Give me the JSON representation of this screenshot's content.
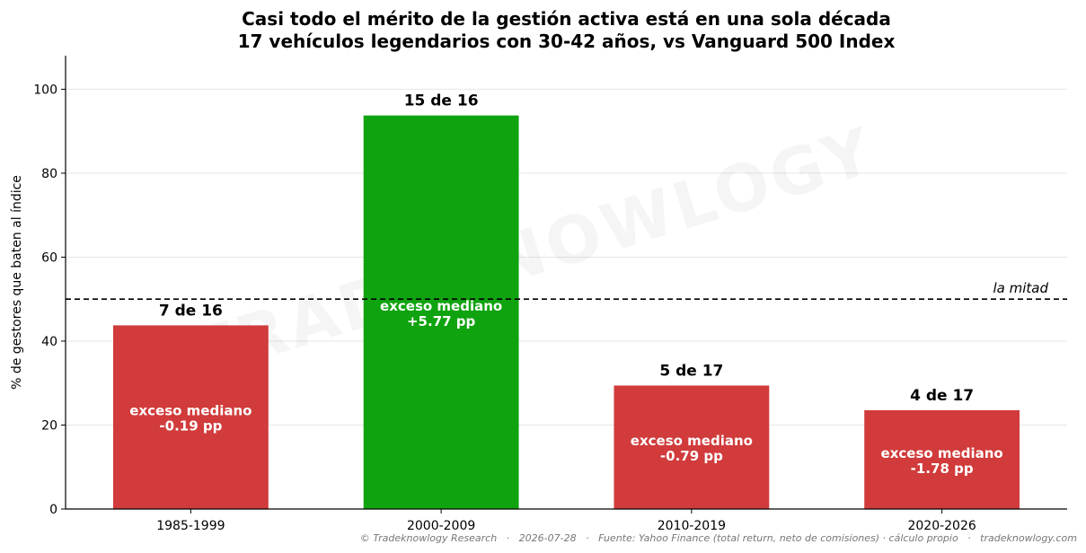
{
  "chart_data": {
    "type": "bar",
    "title": "Casi todo el mérito de la gestión activa está en una sola década",
    "subtitle": "17 vehículos legendarios con 30-42 años, vs Vanguard 500 Index",
    "xlabel": "",
    "ylabel": "% de gestores que baten al índice",
    "ylim": [
      0,
      108
    ],
    "yticks": [
      0,
      20,
      40,
      60,
      80,
      100
    ],
    "grid": "horizontal",
    "categories": [
      "1985-1999",
      "2000-2009",
      "2010-2019",
      "2020-2026"
    ],
    "values": [
      43.75,
      93.75,
      29.41,
      23.53
    ],
    "top_labels": [
      "7 de 16",
      "15 de 16",
      "5 de 17",
      "4 de 17"
    ],
    "inner_labels": [
      [
        "exceso mediano",
        "-0.19 pp"
      ],
      [
        "exceso mediano",
        "+5.77 pp"
      ],
      [
        "exceso mediano",
        "-0.79 pp"
      ],
      [
        "exceso mediano",
        "-1.78 pp"
      ]
    ],
    "bar_colors": [
      "#d13b3b",
      "#0fa30f",
      "#d13b3b",
      "#d13b3b"
    ],
    "reference_line": {
      "value": 50,
      "label": "la mitad"
    },
    "watermark": "TRADEKNOWLOGY"
  },
  "footer": "© Tradeknowlogy Research   ·   2026-07-28   ·   Fuente: Yahoo Finance (total return, neto de comisiones) · cálculo propio   ·   tradeknowlogy.com"
}
